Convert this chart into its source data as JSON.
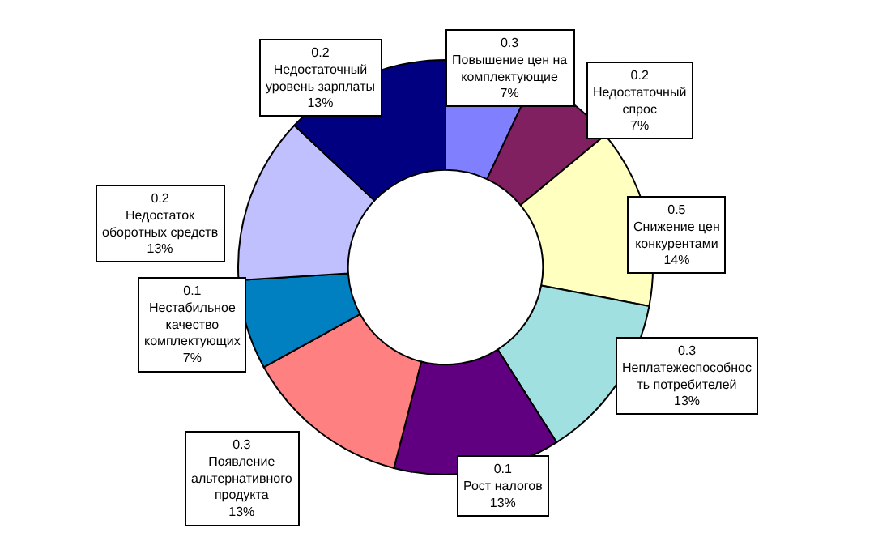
{
  "chart_data": {
    "type": "donut",
    "categories": [
      "Повышение цен на\nкомплектующие",
      "Недостаточный\nспрос",
      "Снижение цен\nконкурентами",
      "Неплатежеспособнос\nть потребителей",
      "Рост налогов",
      "Появление\nальтернативного\nпродукта",
      "Нестабильное\nкачество\nкомплектующих",
      "Недостаток\nоборотных средств",
      "Недостаточный\nуровень зарплаты"
    ],
    "values": [
      7,
      7,
      14,
      13,
      13,
      13,
      7,
      13,
      13
    ],
    "value_labels": [
      [
        "0.3",
        "7%"
      ],
      [
        "0.2",
        "7%"
      ],
      [
        "0.5",
        "14%"
      ],
      [
        "0.3",
        "13%"
      ],
      [
        "0.1",
        "13%"
      ],
      [
        "0.3",
        "13%"
      ],
      [
        "0.1",
        "7%"
      ],
      [
        "0.2",
        "13%"
      ],
      [
        "0.2",
        "13%"
      ]
    ],
    "colors": [
      "#8080ff",
      "#802060",
      "#ffffc0",
      "#a0e0e0",
      "#600080",
      "#ff8080",
      "#0080c0",
      "#c0c0ff",
      "#000080"
    ],
    "legend": false
  }
}
